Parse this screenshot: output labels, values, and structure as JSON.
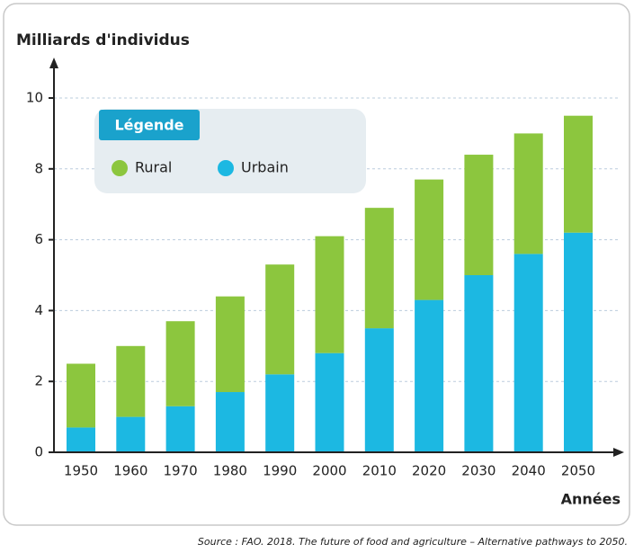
{
  "chart_data": {
    "type": "stacked_bar",
    "y_label": "Milliards d'individus",
    "x_label": "Années",
    "legend_title": "Légende",
    "source": "Source : FAO. 2018. The future of food and agriculture – Alternative pathways to 2050.",
    "categories": [
      "1950",
      "1960",
      "1970",
      "1980",
      "1990",
      "2000",
      "2010",
      "2020",
      "2030",
      "2040",
      "2050"
    ],
    "series": [
      {
        "name": "Rural",
        "color": "#8cc63e",
        "values": [
          1.8,
          2.0,
          2.4,
          2.7,
          3.1,
          3.3,
          3.4,
          3.4,
          3.4,
          3.4,
          3.3
        ]
      },
      {
        "name": "Urbain",
        "color": "#1cb8e2",
        "values": [
          0.7,
          1.0,
          1.3,
          1.7,
          2.2,
          2.8,
          3.5,
          4.3,
          5.0,
          5.6,
          6.2
        ]
      }
    ],
    "ylim": [
      0,
      10
    ],
    "yticks": [
      0,
      2,
      4,
      6,
      8,
      10
    ],
    "grid": true
  }
}
